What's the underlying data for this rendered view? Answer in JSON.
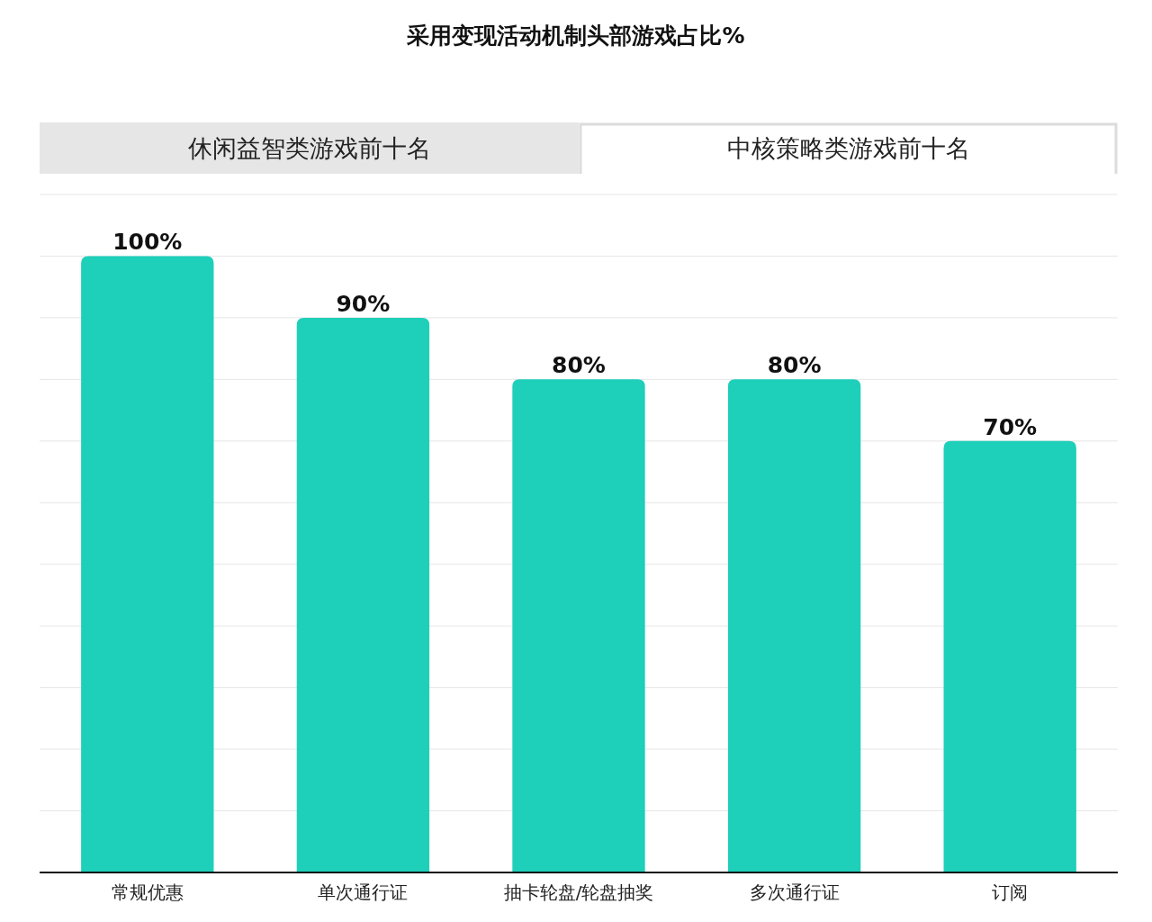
{
  "chart_data": {
    "type": "bar",
    "title": "采用变现活动机制头部游戏占比%",
    "annotations": [
      "休闲益智类游戏前十名",
      "中核策略类游戏前十名"
    ],
    "categories": [
      "常规优惠",
      "单次通行证",
      "抽卡轮盘/轮盘抽奖",
      "多次通行证",
      "订阅"
    ],
    "values": [
      100,
      90,
      80,
      80,
      70
    ],
    "value_labels": [
      "100%",
      "90%",
      "80%",
      "80%",
      "70%"
    ],
    "color": "#1ecfba",
    "ylim": [
      0,
      110
    ],
    "yticks": [
      {
        "value": 0,
        "label": null
      },
      {
        "value": 10,
        "label": null
      },
      {
        "value": 20,
        "label": null
      },
      {
        "value": 30,
        "label": null
      },
      {
        "value": 40,
        "label": null
      },
      {
        "value": 50,
        "label": null
      },
      {
        "value": 60,
        "label": null
      },
      {
        "value": 70,
        "label": null
      },
      {
        "value": 80,
        "label": null
      },
      {
        "value": 90,
        "label": null
      },
      {
        "value": 100,
        "label": null
      },
      {
        "value": 110,
        "label": null
      }
    ],
    "grid": "y",
    "tick_labels": "x"
  }
}
